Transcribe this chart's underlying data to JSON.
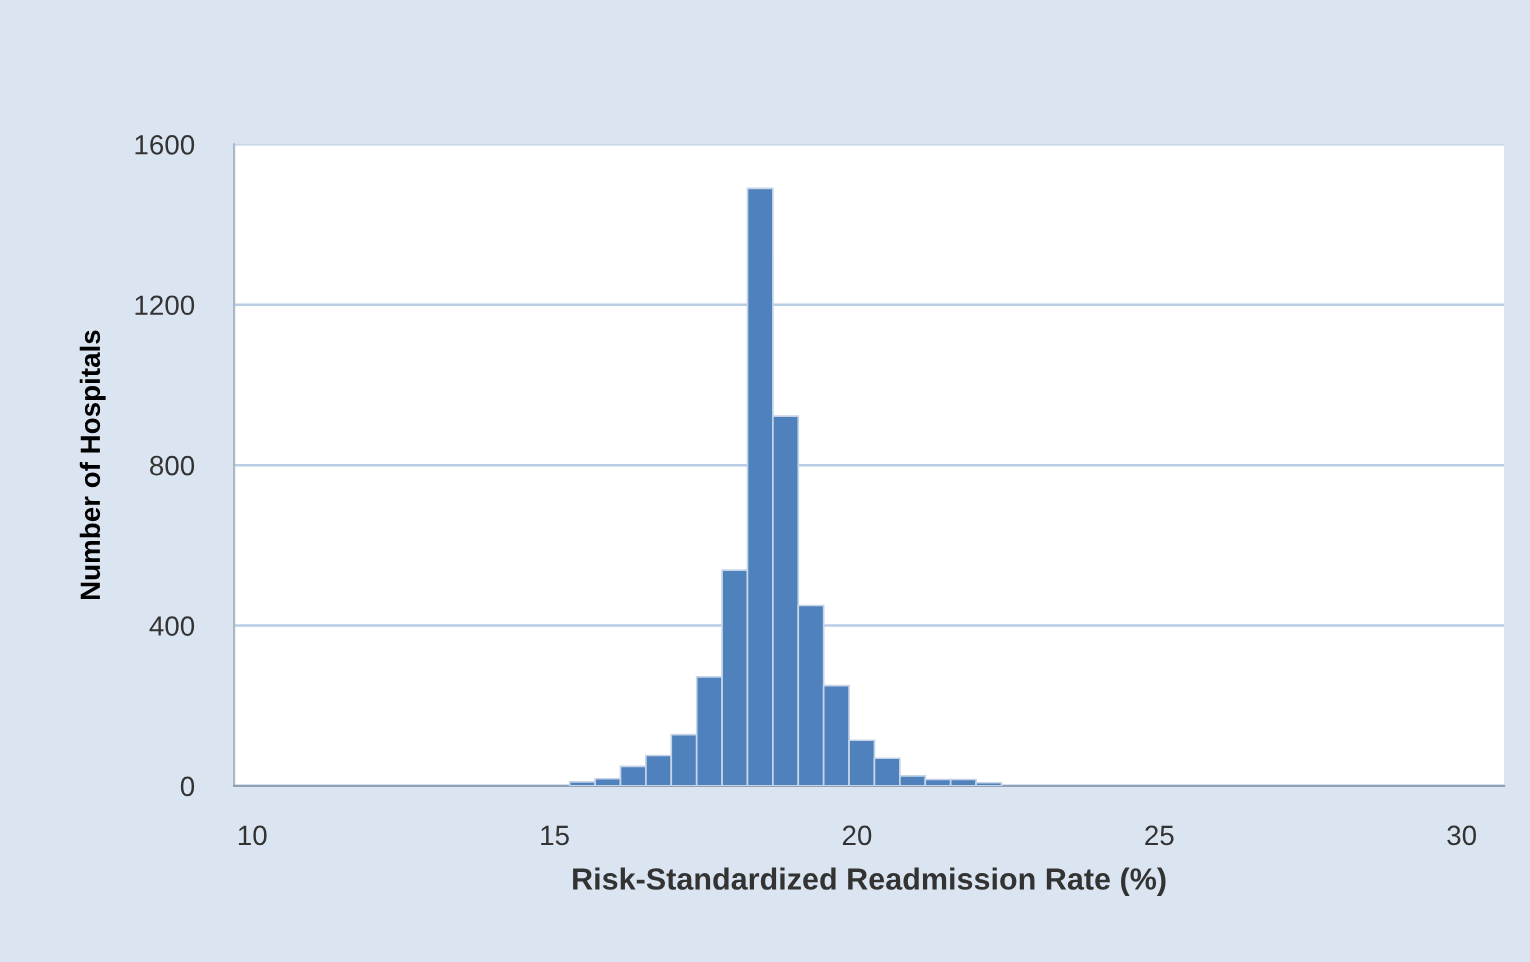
{
  "chart_data": {
    "type": "histogram",
    "xlabel": "Risk-Standardized Readmission Rate (%)",
    "ylabel": "Number of Hospitals",
    "bins": [
      15.25,
      15.67,
      16.09,
      16.51,
      16.93,
      17.35,
      17.77,
      18.19,
      18.61,
      19.03,
      19.45,
      19.87,
      20.29,
      20.71,
      21.13,
      21.55,
      21.97,
      22.39
    ],
    "values": [
      10,
      18,
      49,
      76,
      128,
      272,
      538,
      1490,
      922,
      450,
      250,
      114,
      69,
      25,
      16,
      16,
      8
    ],
    "color": "#4f81bd",
    "xlim": [
      9.7,
      30.7
    ],
    "xticks": [
      10,
      15,
      20,
      25,
      30
    ],
    "ylim": [
      0,
      1600
    ],
    "yticks": [
      0,
      400,
      800,
      1200,
      1600
    ],
    "grid": "y",
    "legend": false
  }
}
